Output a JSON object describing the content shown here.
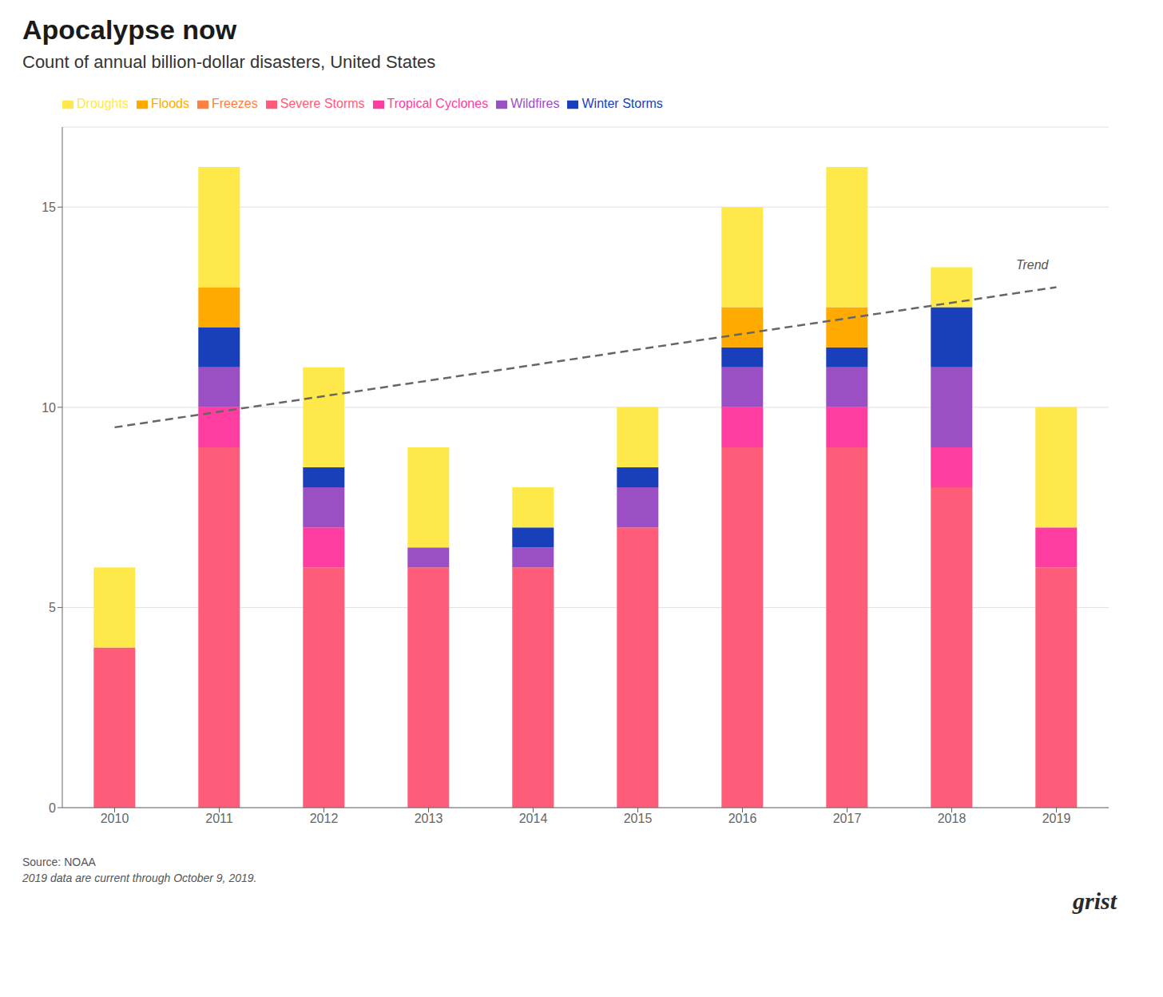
{
  "chart_data": {
    "type": "bar",
    "stacked": true,
    "title": "Apocalypse now",
    "subtitle": "Count of annual billion-dollar disasters, United States",
    "source": "Source: NOAA",
    "note": "2019 data are current through October 9, 2019.",
    "credit": "grist",
    "categories": [
      "2010",
      "2011",
      "2012",
      "2013",
      "2014",
      "2015",
      "2016",
      "2017",
      "2018",
      "2019"
    ],
    "series": [
      {
        "name": "Severe Storms",
        "color": "#FF5C7A",
        "values": [
          4,
          9,
          6,
          6,
          6,
          7,
          9,
          9,
          8,
          6
        ]
      },
      {
        "name": "Tropical Cyclones",
        "color": "#FF3DA0",
        "values": [
          0,
          1,
          1,
          0,
          0,
          0,
          1,
          1,
          1,
          1
        ]
      },
      {
        "name": "Wildfires",
        "color": "#9B4FC4",
        "values": [
          0,
          1,
          1,
          0.5,
          0.5,
          1,
          1,
          1,
          2,
          0
        ]
      },
      {
        "name": "Winter Storms",
        "color": "#1A3FBB",
        "values": [
          0,
          1,
          0.5,
          0,
          0.5,
          0.5,
          0.5,
          0.5,
          1.5,
          0
        ]
      },
      {
        "name": "Freezes",
        "color": "#FF8040",
        "values": [
          0,
          0,
          0,
          0,
          0,
          0,
          0,
          0,
          0,
          0
        ]
      },
      {
        "name": "Floods",
        "color": "#FFAA00",
        "values": [
          0,
          1,
          0,
          0,
          0,
          0,
          1,
          1,
          0,
          0
        ]
      },
      {
        "name": "Droughts",
        "color": "#FFE84A",
        "values": [
          2,
          3,
          2.5,
          2.5,
          1,
          1.5,
          2.5,
          3.5,
          1,
          3
        ]
      },
      {
        "name": "Trend",
        "type": "line",
        "color": "#666666",
        "line_style": "dashed",
        "values": [
          9.5,
          null,
          null,
          null,
          null,
          null,
          null,
          null,
          null,
          13.0
        ]
      }
    ],
    "ylim": [
      0,
      17
    ],
    "yticks": [
      0,
      5,
      10,
      15
    ],
    "grid": true,
    "legend": "top"
  }
}
